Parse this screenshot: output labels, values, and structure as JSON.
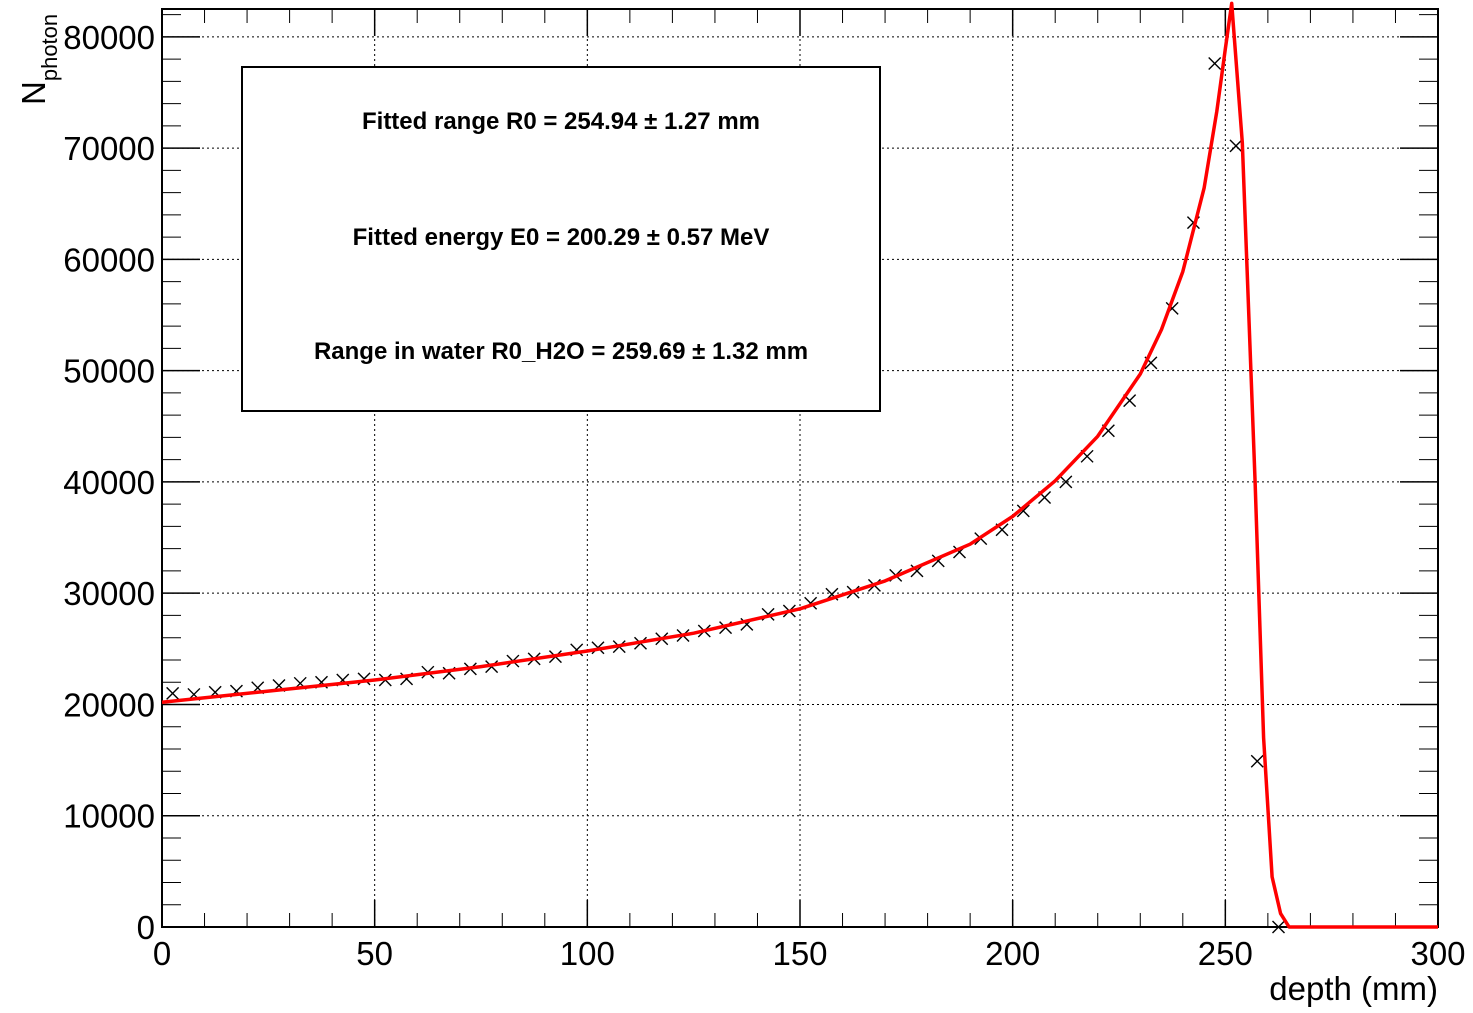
{
  "chart_data": {
    "type": "scatter",
    "xlabel": "depth (mm)",
    "ylabel_main": "N",
    "ylabel_sub": "photon",
    "xlim": [
      0,
      300
    ],
    "ylim": [
      0,
      82500
    ],
    "grid": true,
    "x_ticks": [
      0,
      50,
      100,
      150,
      200,
      250,
      300
    ],
    "y_ticks": [
      0,
      10000,
      20000,
      30000,
      40000,
      50000,
      60000,
      70000,
      80000
    ],
    "x_tick_labels": [
      "0",
      "50",
      "100",
      "150",
      "200",
      "250",
      "300"
    ],
    "y_tick_labels": [
      "0",
      "10000",
      "20000",
      "30000",
      "40000",
      "50000",
      "60000",
      "70000",
      "80000"
    ],
    "annotations": [
      "Fitted range R0 = 254.94 ± 1.27 mm",
      "Fitted energy E0 = 200.29 ± 0.57 MeV",
      "Range in water R0_H2O = 259.69 ± 1.32 mm"
    ],
    "series": [
      {
        "kind": "points",
        "marker": "x",
        "color": "#000000",
        "x": [
          2.5,
          7.5,
          12.5,
          17.5,
          22.5,
          27.5,
          32.5,
          37.5,
          42.5,
          47.5,
          52.5,
          57.5,
          62.5,
          67.5,
          72.5,
          77.5,
          82.5,
          87.5,
          92.5,
          97.5,
          102.5,
          107.5,
          112.5,
          117.5,
          122.5,
          127.5,
          132.5,
          137.5,
          142.5,
          147.5,
          152.5,
          157.5,
          162.5,
          167.5,
          172.5,
          177.5,
          182.5,
          187.5,
          192.5,
          197.5,
          202.5,
          207.5,
          212.5,
          217.5,
          222.5,
          227.5,
          232.5,
          237.5,
          242.5,
          247.5,
          252.5,
          257.5,
          262.5
        ],
        "y": [
          21000,
          20900,
          21100,
          21200,
          21500,
          21700,
          21900,
          22000,
          22200,
          22300,
          22200,
          22300,
          22900,
          22800,
          23200,
          23400,
          23900,
          24100,
          24300,
          24900,
          25100,
          25200,
          25500,
          25900,
          26200,
          26600,
          26900,
          27200,
          28100,
          28400,
          29100,
          29900,
          30100,
          30700,
          31600,
          32000,
          32900,
          33700,
          34900,
          35700,
          37400,
          38600,
          40000,
          42300,
          44600,
          47300,
          50700,
          55600,
          63300,
          77600,
          70200,
          14900,
          0
        ]
      },
      {
        "kind": "fit",
        "color": "#ff0000",
        "x": [
          0,
          25,
          50,
          75,
          100,
          125,
          150,
          170,
          190,
          200,
          210,
          220,
          230,
          235,
          240,
          245,
          248,
          250,
          251.5,
          254,
          257,
          259,
          261,
          263,
          265,
          300
        ],
        "y": [
          20200,
          21200,
          22200,
          23400,
          24800,
          26400,
          28600,
          31100,
          34400,
          36900,
          40100,
          44100,
          49700,
          53700,
          58900,
          66400,
          73300,
          78900,
          83000,
          70500,
          40000,
          17000,
          4500,
          1200,
          0,
          0
        ]
      }
    ]
  }
}
